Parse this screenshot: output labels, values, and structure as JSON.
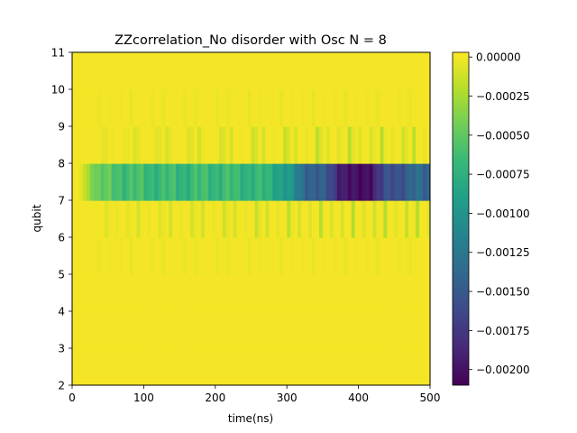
{
  "chart_data": {
    "type": "heatmap",
    "title": "ZZcorrelation_No disorder with Osc N = 8",
    "xlabel": "time(ns)",
    "ylabel": "qubit",
    "xlim": [
      0,
      500
    ],
    "ylim": [
      2,
      11
    ],
    "x_ticks": [
      "0",
      "100",
      "200",
      "300",
      "400",
      "500"
    ],
    "y_ticks": [
      "2",
      "3",
      "4",
      "5",
      "6",
      "7",
      "8",
      "9",
      "10",
      "11"
    ],
    "colormap": "viridis",
    "color_range": [
      -0.0021,
      3e-05
    ],
    "colorbar_ticks": [
      "0.00000",
      "−0.00025",
      "−0.00050",
      "−0.00075",
      "−0.00100",
      "−0.00125",
      "−0.00150",
      "−0.00175",
      "−0.00200"
    ],
    "time_step_ns": 5,
    "qubit_rows": [
      2,
      3,
      4,
      5,
      6,
      7,
      8,
      9,
      10
    ],
    "row_7_8_time_ns": [
      0,
      10,
      20,
      30,
      40,
      60,
      80,
      100,
      150,
      200,
      250,
      280,
      300,
      320,
      340,
      360,
      380,
      400,
      420,
      440,
      460,
      480,
      500
    ],
    "row_7_8_value": [
      0,
      0,
      -0.0002,
      -0.0004,
      -0.0005,
      -0.00058,
      -0.00062,
      -0.00065,
      -0.00068,
      -0.00065,
      -0.0007,
      -0.00075,
      -0.00095,
      -0.0013,
      -0.00145,
      -0.0016,
      -0.00195,
      -0.0021,
      -0.0019,
      -0.0016,
      -0.0015,
      -0.0014,
      -0.0014
    ],
    "row_7_8_oscillation": 0.00015,
    "row_6_7_amplitude": 0.00022,
    "row_8_9_amplitude": 0.00022,
    "row_5_6_amplitude": 4e-05,
    "row_9_10_amplitude": 4e-05,
    "background_value": 0
  }
}
